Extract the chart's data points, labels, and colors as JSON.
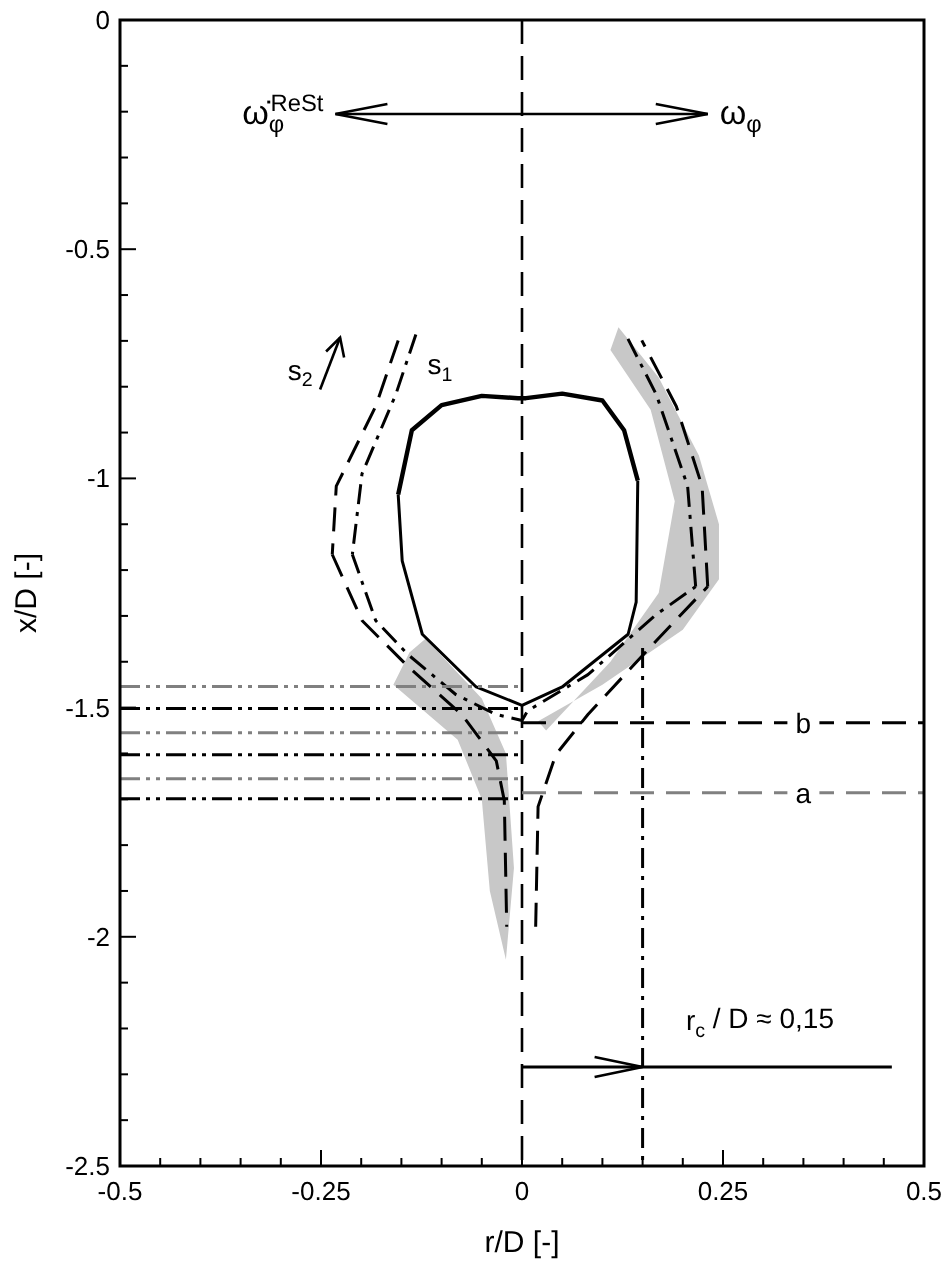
{
  "chart_data": {
    "type": "line",
    "xlabel": "r/D [-]",
    "ylabel": "x/D [-]",
    "xlim": [
      -0.5,
      0.5
    ],
    "ylim": [
      -2.5,
      0
    ],
    "xticks": [
      {
        "value": -0.5,
        "label": "-0.5"
      },
      {
        "value": -0.45,
        "label": null
      },
      {
        "value": -0.4,
        "label": null
      },
      {
        "value": -0.35,
        "label": null
      },
      {
        "value": -0.3,
        "label": null
      },
      {
        "value": -0.25,
        "label": "-0.25"
      },
      {
        "value": -0.2,
        "label": null
      },
      {
        "value": -0.15,
        "label": null
      },
      {
        "value": -0.1,
        "label": null
      },
      {
        "value": -0.05,
        "label": null
      },
      0,
      {
        "value": 0.05,
        "label": null
      },
      {
        "value": 0.1,
        "label": null
      },
      {
        "value": 0.15,
        "label": null
      },
      {
        "value": 0.2,
        "label": null
      },
      0.25,
      {
        "value": 0.3,
        "label": null
      },
      {
        "value": 0.35,
        "label": null
      },
      {
        "value": 0.4,
        "label": null
      },
      {
        "value": 0.45,
        "label": null
      },
      0.5
    ],
    "yticks": [
      {
        "value": -2.5,
        "label": "-2.5"
      },
      {
        "value": -2.4,
        "label": null
      },
      {
        "value": -2.3,
        "label": null
      },
      {
        "value": -2.2,
        "label": null
      },
      {
        "value": -2.1,
        "label": null
      },
      -2,
      {
        "value": -1.9,
        "label": null
      },
      {
        "value": -1.8,
        "label": null
      },
      {
        "value": -1.7,
        "label": null
      },
      {
        "value": -1.6,
        "label": null
      },
      -1.5,
      {
        "value": -1.4,
        "label": null
      },
      {
        "value": -1.3,
        "label": null
      },
      {
        "value": -1.2,
        "label": null
      },
      {
        "value": -1.1,
        "label": null
      },
      -1,
      {
        "value": -0.9,
        "label": null
      },
      {
        "value": -0.8,
        "label": null
      },
      {
        "value": -0.7,
        "label": null
      },
      {
        "value": -0.6,
        "label": null
      },
      -0.5,
      {
        "value": -0.4,
        "label": null
      },
      {
        "value": -0.3,
        "label": null
      },
      {
        "value": -0.2,
        "label": null
      },
      {
        "value": -0.1,
        "label": null
      },
      0
    ],
    "grid": false,
    "marker": "none",
    "series": [
      {
        "type": "area",
        "color": "#c8c8c8",
        "x": [
          0.12,
          0.17,
          0.22,
          0.245,
          0.245,
          0.2,
          0.1,
          0.02,
          0.03,
          0.11,
          0.17,
          0.19,
          0.16,
          0.11
        ],
        "values": [
          -0.67,
          -0.78,
          -0.95,
          -1.1,
          -1.22,
          -1.33,
          -1.45,
          -1.53,
          -1.55,
          -1.4,
          -1.25,
          -1.05,
          -0.85,
          -0.72
        ]
      },
      {
        "type": "area",
        "color": "#c8c8c8",
        "x": [
          -0.12,
          -0.05,
          -0.02,
          -0.01,
          -0.02,
          -0.04,
          -0.05,
          -0.08,
          -0.16,
          -0.14
        ],
        "values": [
          -1.35,
          -1.48,
          -1.6,
          -1.85,
          -2.05,
          -1.9,
          -1.7,
          -1.57,
          -1.45,
          -1.38
        ]
      },
      {
        "color": "#000000",
        "line_style": "solid",
        "x": [
          -0.154,
          -0.137,
          -0.1,
          -0.05,
          -0.005,
          0.005,
          0.05,
          0.1,
          0.127,
          0.144
        ],
        "values": [
          -1.035,
          -0.895,
          -0.84,
          -0.82,
          -0.825,
          -0.825,
          -0.815,
          -0.83,
          -0.895,
          -1.005
        ]
      },
      {
        "color": "#000000",
        "line_style": "solid",
        "x": [
          -0.154,
          -0.149,
          -0.124,
          -0.057,
          0,
          0.05,
          0.132,
          0.142,
          0.144
        ],
        "values": [
          -1.035,
          -1.18,
          -1.34,
          -1.455,
          -1.495,
          -1.455,
          -1.34,
          -1.27,
          -1.005
        ]
      },
      {
        "color": "#000000",
        "line_style": "dashdot",
        "x": [
          -0.132,
          -0.157,
          -0.199,
          -0.211
        ],
        "values": [
          -0.686,
          -0.817,
          -0.99,
          -1.166
        ]
      },
      {
        "color": "#000000",
        "line_style": "dashdot",
        "x": [
          -0.211,
          -0.182,
          -0.142,
          -0.082,
          -0.032,
          0,
          0.007,
          0.082,
          0.167,
          0.216
        ],
        "values": [
          -1.166,
          -1.31,
          -1.384,
          -1.472,
          -1.515,
          -1.528,
          -1.507,
          -1.428,
          -1.297,
          -1.236
        ]
      },
      {
        "color": "#000000",
        "line_style": "dashdot",
        "x": [
          0.216,
          0.206,
          0.167,
          0.129
        ],
        "values": [
          -1.236,
          -1.017,
          -0.817,
          -0.686
        ]
      },
      {
        "color": "#000000",
        "line_style": "dashed",
        "x": [
          -0.154,
          -0.182,
          -0.231,
          -0.236
        ],
        "values": [
          -0.699,
          -0.843,
          -1.017,
          -1.166
        ]
      },
      {
        "color": "#000000",
        "line_style": "dashed",
        "x": [
          -0.236,
          -0.199,
          -0.142,
          -0.075,
          -0.032,
          -0.022,
          -0.019
        ],
        "values": [
          -1.166,
          -1.31,
          -1.41,
          -1.515,
          -1.616,
          -1.703,
          -1.978
        ]
      },
      {
        "color": "#000000",
        "line_style": "dashed",
        "x": [
          0.017,
          0.02,
          0.042,
          0.082,
          0.167,
          0.231
        ],
        "values": [
          -1.978,
          -1.716,
          -1.603,
          -1.515,
          -1.354,
          -1.236
        ]
      },
      {
        "color": "#000000",
        "line_style": "dashed",
        "x": [
          0.231,
          0.224,
          0.192,
          0.149
        ],
        "values": [
          -1.236,
          -1.017,
          -0.843,
          -0.699
        ]
      },
      {
        "color": "#808080",
        "line_style": "dashdotdot",
        "x": [
          -0.5,
          0
        ],
        "values": [
          -1.454,
          -1.454
        ]
      },
      {
        "color": "#000000",
        "line_style": "dashdotdot",
        "x": [
          -0.5,
          0
        ],
        "values": [
          -1.502,
          -1.502
        ]
      },
      {
        "color": "#808080",
        "line_style": "dashdotdot",
        "x": [
          -0.5,
          0
        ],
        "values": [
          -1.555,
          -1.555
        ]
      },
      {
        "color": "#000000",
        "line_style": "dashdotdot",
        "x": [
          -0.5,
          0
        ],
        "values": [
          -1.603,
          -1.603
        ]
      },
      {
        "color": "#808080",
        "line_style": "dashdotdot",
        "x": [
          -0.5,
          0
        ],
        "values": [
          -1.655,
          -1.655
        ]
      },
      {
        "color": "#000000",
        "line_style": "dashdotdot",
        "x": [
          -0.5,
          0
        ],
        "values": [
          -1.699,
          -1.699
        ]
      },
      {
        "color": "#000000",
        "line_style": "dashed",
        "x": [
          0,
          0.5
        ],
        "values": [
          -1.533,
          -1.533
        ]
      },
      {
        "color": "#808080",
        "line_style": "dashed",
        "x": [
          0,
          0.5
        ],
        "values": [
          -1.686,
          -1.686
        ]
      },
      {
        "color": "#000000",
        "line_style": "dashdot",
        "x": [
          0.15,
          0.15
        ],
        "values": [
          -1.37,
          -2.5
        ]
      },
      {
        "color": "#000000",
        "line_style": "solid",
        "x": [
          0,
          0.46
        ],
        "values": [
          -2.284,
          -2.284
        ]
      }
    ],
    "ref_lines": [
      {
        "axis": "x",
        "value": 0,
        "color": "#000000",
        "line_style": "dashed"
      }
    ],
    "annotations": [
      "ω̇$_{φ}$$^{ReSt}$",
      "ω$_{φ}$",
      "s$_{2}$",
      "s$_{1}$",
      {
        "text": "b",
        "x": 0.35,
        "y": -1.533
      },
      {
        "text": "a",
        "x": 0.35,
        "y": -1.686
      },
      "r$_{c}$ / D ≈ 0,15"
    ]
  }
}
